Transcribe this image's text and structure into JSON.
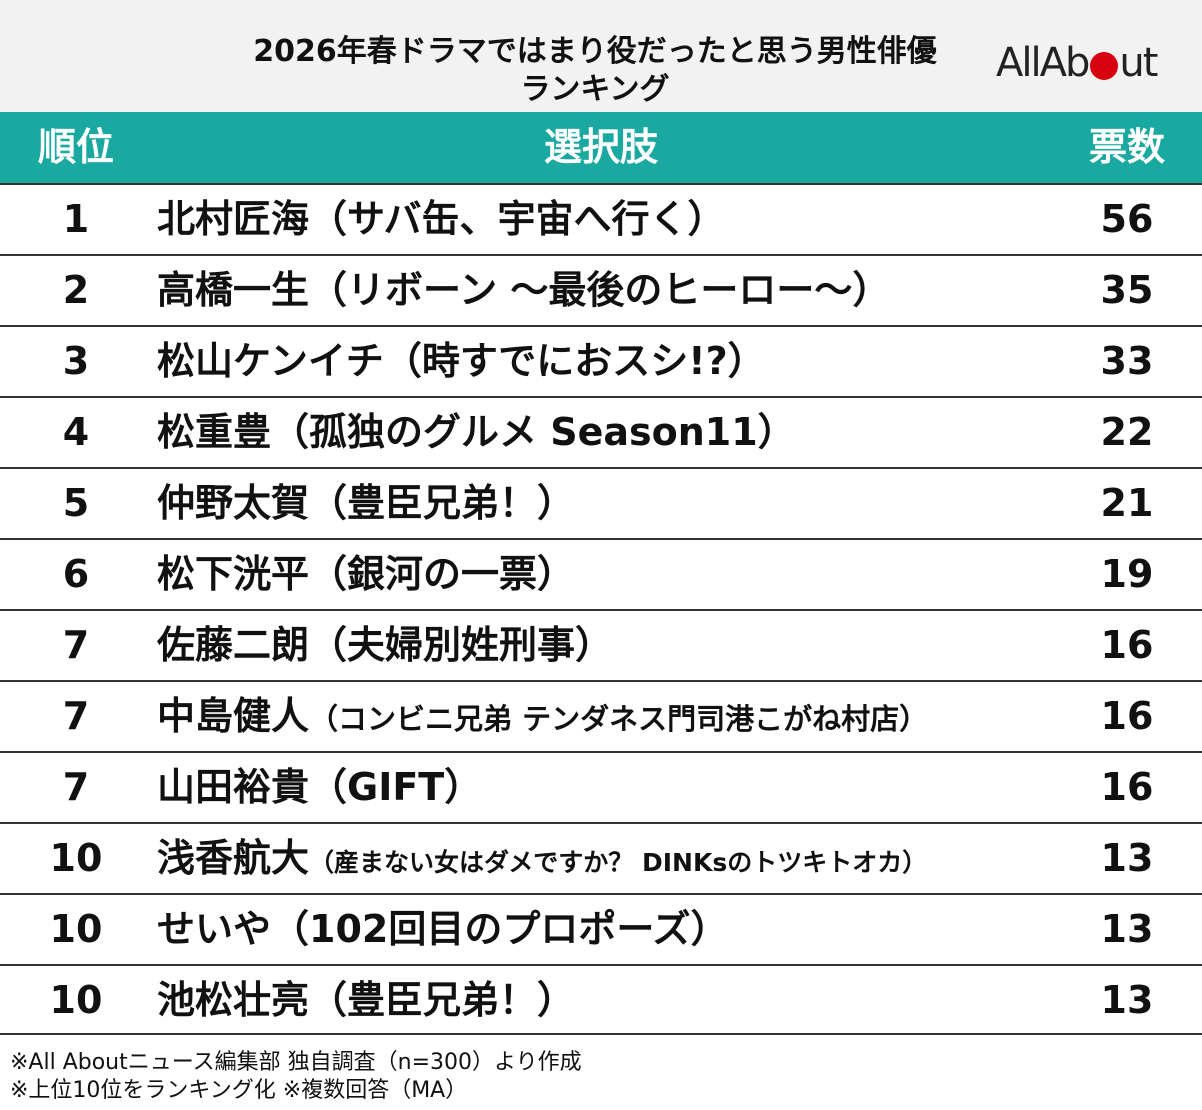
{
  "header": {
    "title_lines": [
      "2026年春ドラマではまり役だったと思う男性俳優",
      "ランキング"
    ],
    "logo": {
      "left": "AllAb",
      "right": "ut"
    }
  },
  "table": {
    "columns": [
      "順位",
      "選択肢",
      "票数"
    ],
    "rows": [
      {
        "rank": "1",
        "name": "北村匠海",
        "work": "（サバ缶、宇宙へ行く）",
        "votes": "56"
      },
      {
        "rank": "2",
        "name": "高橋一生",
        "work": "（リボーン ～最後のヒーロー～）",
        "votes": "35"
      },
      {
        "rank": "3",
        "name": "松山ケンイチ",
        "work": "（時すでにおスシ!?）",
        "votes": "33"
      },
      {
        "rank": "4",
        "name": "松重豊",
        "work": "（孤独のグルメ Season11）",
        "votes": "22"
      },
      {
        "rank": "5",
        "name": "仲野太賀",
        "work": "（豊臣兄弟！）",
        "votes": "21"
      },
      {
        "rank": "6",
        "name": "松下洸平",
        "work": "（銀河の一票）",
        "votes": "19"
      },
      {
        "rank": "7",
        "name": "佐藤二朗",
        "work": "（夫婦別姓刑事）",
        "votes": "16"
      },
      {
        "rank": "7",
        "name": "中島健人",
        "work": "（コンビニ兄弟 テンダネス門司港こがね村店）",
        "votes": "16"
      },
      {
        "rank": "7",
        "name": "山田裕貴",
        "work": "（GIFT）",
        "votes": "16"
      },
      {
        "rank": "10",
        "name": "浅香航大",
        "work": "（産まない女はダメですか？ DINKsのトツキトオカ）",
        "votes": "13"
      },
      {
        "rank": "10",
        "name": "せいや",
        "work": "（102回目のプロポーズ）",
        "votes": "13"
      },
      {
        "rank": "10",
        "name": "池松壮亮",
        "work": "（豊臣兄弟！）",
        "votes": "13"
      }
    ]
  },
  "footnotes": [
    "※All Aboutニュース編集部 独自調査（n=300）より作成",
    "※上位10位をランキング化 ※複数回答（MA）"
  ]
}
